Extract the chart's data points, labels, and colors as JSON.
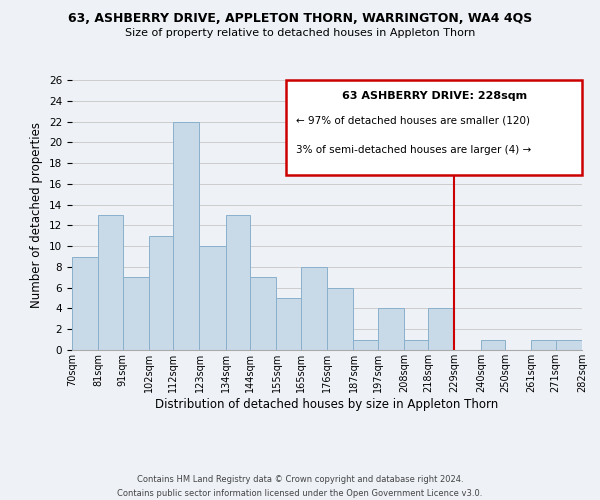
{
  "title1": "63, ASHBERRY DRIVE, APPLETON THORN, WARRINGTON, WA4 4QS",
  "title2": "Size of property relative to detached houses in Appleton Thorn",
  "xlabel": "Distribution of detached houses by size in Appleton Thorn",
  "ylabel": "Number of detached properties",
  "bin_left_edges": [
    70,
    81,
    91,
    102,
    112,
    123,
    134,
    144,
    155,
    165,
    176,
    187,
    197,
    208,
    218,
    229,
    240,
    250,
    261,
    271
  ],
  "bin_right_edges": [
    81,
    91,
    102,
    112,
    123,
    134,
    144,
    155,
    165,
    176,
    187,
    197,
    208,
    218,
    229,
    240,
    250,
    261,
    271,
    282
  ],
  "bar_heights": [
    9,
    13,
    7,
    11,
    22,
    10,
    13,
    7,
    5,
    8,
    6,
    1,
    4,
    1,
    4,
    0,
    1,
    0,
    1,
    1
  ],
  "tick_labels": [
    "70sqm",
    "81sqm",
    "91sqm",
    "102sqm",
    "112sqm",
    "123sqm",
    "134sqm",
    "144sqm",
    "155sqm",
    "165sqm",
    "176sqm",
    "187sqm",
    "197sqm",
    "208sqm",
    "218sqm",
    "229sqm",
    "240sqm",
    "250sqm",
    "261sqm",
    "271sqm",
    "282sqm"
  ],
  "bar_color": "#c8d9e8",
  "bar_edge_color": "#8ab0cc",
  "grid_color": "#cccccc",
  "vline_x": 229,
  "vline_color": "#cc0000",
  "ylim": [
    0,
    26
  ],
  "yticks": [
    0,
    2,
    4,
    6,
    8,
    10,
    12,
    14,
    16,
    18,
    20,
    22,
    24,
    26
  ],
  "legend_title": "63 ASHBERRY DRIVE: 228sqm",
  "legend_line1": "← 97% of detached houses are smaller (120)",
  "legend_line2": "3% of semi-detached houses are larger (4) →",
  "legend_box_color": "#cc0000",
  "footer1": "Contains HM Land Registry data © Crown copyright and database right 2024.",
  "footer2": "Contains public sector information licensed under the Open Government Licence v3.0.",
  "bg_color": "#eef2f7"
}
